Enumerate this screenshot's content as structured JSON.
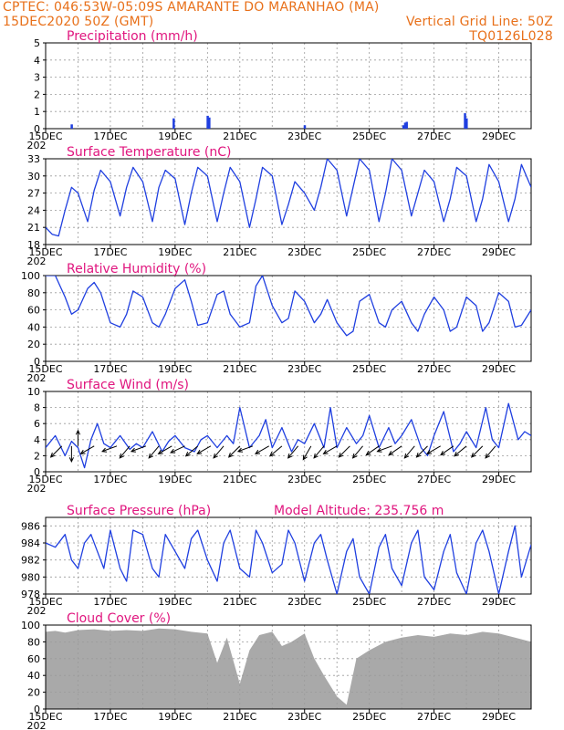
{
  "header": {
    "line1_left": "CPTEC:   046:53W-05:09S   AMARANTE DO MARANHAO (MA)",
    "line2_left": "15DEC2020 50Z (GMT)",
    "line2_right": "Vertical Grid Line: 50Z",
    "line3_right": "TQ0126L028"
  },
  "colors": {
    "header": "#e8701a",
    "title": "#e0157e",
    "series": "#1f3fe0",
    "cloud": "#a9a9a9",
    "grid": "#9a9a9a"
  },
  "x_tick_labels": [
    "15DEC",
    "17DEC",
    "19DEC",
    "21DEC",
    "23DEC",
    "25DEC",
    "27DEC",
    "29DEC"
  ],
  "x_start_label": "202",
  "chart_data": [
    {
      "type": "bar",
      "title": "Precipitation (mm/h)",
      "ylim": [
        0,
        5
      ],
      "yticks": [
        0,
        1,
        2,
        3,
        4,
        5
      ],
      "x_range_days": [
        0,
        15
      ],
      "bars": [
        [
          0.8,
          0.25
        ],
        [
          3.95,
          0.6
        ],
        [
          5.0,
          0.75
        ],
        [
          5.05,
          0.65
        ],
        [
          8.0,
          0.2
        ],
        [
          11.05,
          0.2
        ],
        [
          11.1,
          0.35
        ],
        [
          11.15,
          0.4
        ],
        [
          12.95,
          0.9
        ],
        [
          13.0,
          0.6
        ]
      ]
    },
    {
      "type": "line",
      "title": "Surface Temperature (nC)",
      "ylim": [
        18,
        33
      ],
      "yticks": [
        18,
        21,
        24,
        27,
        30,
        33
      ],
      "x": [
        0,
        0.2,
        0.4,
        0.6,
        0.8,
        1.0,
        1.3,
        1.5,
        1.7,
        2.0,
        2.3,
        2.5,
        2.7,
        3.0,
        3.3,
        3.5,
        3.7,
        4.0,
        4.3,
        4.5,
        4.7,
        5.0,
        5.3,
        5.5,
        5.7,
        6.0,
        6.3,
        6.5,
        6.7,
        7.0,
        7.3,
        7.5,
        7.7,
        8.0,
        8.3,
        8.5,
        8.7,
        9.0,
        9.3,
        9.5,
        9.7,
        10.0,
        10.3,
        10.5,
        10.7,
        11.0,
        11.3,
        11.5,
        11.7,
        12.0,
        12.3,
        12.5,
        12.7,
        13.0,
        13.3,
        13.5,
        13.7,
        14.0,
        14.3,
        14.5,
        14.7,
        15.0
      ],
      "values": [
        21.0,
        19.8,
        19.5,
        24.0,
        28.0,
        27.0,
        22.0,
        27.5,
        31.0,
        29.0,
        23.0,
        28.0,
        31.5,
        29.0,
        22.0,
        28.0,
        31.0,
        29.5,
        21.5,
        27.0,
        31.5,
        30.0,
        22.0,
        27.0,
        31.5,
        29.0,
        21.0,
        26.0,
        31.5,
        30.0,
        21.5,
        25.0,
        29.0,
        27.0,
        24.0,
        28.0,
        33.0,
        31.0,
        23.0,
        28.0,
        33.0,
        31.0,
        22.0,
        27.0,
        33.0,
        31.0,
        23.0,
        27.0,
        31.0,
        29.0,
        22.0,
        26.0,
        31.5,
        30.0,
        22.0,
        26.0,
        32.0,
        29.0,
        22.0,
        26.0,
        32.0,
        28.0
      ]
    },
    {
      "type": "line",
      "title": "Relative Humidity (%)",
      "ylim": [
        0,
        100
      ],
      "yticks": [
        0,
        20,
        40,
        60,
        80,
        100
      ],
      "x": [
        0,
        0.3,
        0.6,
        0.8,
        1.0,
        1.3,
        1.5,
        1.7,
        2.0,
        2.3,
        2.5,
        2.7,
        3.0,
        3.3,
        3.5,
        3.7,
        4.0,
        4.3,
        4.5,
        4.7,
        5.0,
        5.3,
        5.5,
        5.7,
        6.0,
        6.3,
        6.5,
        6.7,
        7.0,
        7.3,
        7.5,
        7.7,
        8.0,
        8.3,
        8.5,
        8.7,
        9.0,
        9.3,
        9.5,
        9.7,
        10.0,
        10.3,
        10.5,
        10.7,
        11.0,
        11.3,
        11.5,
        11.7,
        12.0,
        12.3,
        12.5,
        12.7,
        13.0,
        13.3,
        13.5,
        13.7,
        14.0,
        14.3,
        14.5,
        14.7,
        15.0
      ],
      "values": [
        100,
        100,
        75,
        55,
        60,
        85,
        92,
        80,
        45,
        40,
        55,
        82,
        75,
        45,
        40,
        55,
        85,
        95,
        70,
        42,
        45,
        78,
        82,
        55,
        40,
        45,
        88,
        100,
        65,
        45,
        50,
        82,
        70,
        45,
        55,
        72,
        45,
        30,
        35,
        70,
        78,
        45,
        40,
        60,
        70,
        45,
        35,
        55,
        75,
        60,
        35,
        40,
        75,
        65,
        35,
        45,
        80,
        70,
        40,
        42,
        60
      ]
    },
    {
      "type": "line",
      "title": "Surface Wind (m/s)",
      "ylim": [
        0,
        10
      ],
      "yticks": [
        0,
        2,
        4,
        6,
        8,
        10
      ],
      "x": [
        0,
        0.3,
        0.6,
        0.8,
        1.0,
        1.2,
        1.4,
        1.6,
        1.8,
        2.0,
        2.3,
        2.6,
        2.8,
        3.0,
        3.3,
        3.6,
        3.8,
        4.0,
        4.3,
        4.6,
        4.8,
        5.0,
        5.3,
        5.6,
        5.8,
        6.0,
        6.3,
        6.6,
        6.8,
        7.0,
        7.3,
        7.6,
        7.8,
        8.0,
        8.3,
        8.6,
        8.8,
        9.0,
        9.3,
        9.6,
        9.8,
        10.0,
        10.3,
        10.6,
        10.8,
        11.0,
        11.3,
        11.6,
        11.8,
        12.0,
        12.3,
        12.6,
        12.8,
        13.0,
        13.3,
        13.6,
        13.8,
        14.0,
        14.3,
        14.6,
        14.8,
        15.0
      ],
      "values": [
        3.0,
        4.5,
        2.0,
        3.8,
        3.0,
        0.5,
        4.0,
        6.0,
        3.5,
        3.0,
        4.5,
        2.8,
        3.5,
        3.0,
        5.0,
        2.5,
        3.8,
        4.5,
        3.0,
        2.5,
        4.0,
        4.5,
        3.0,
        4.5,
        3.5,
        8.0,
        3.0,
        4.5,
        6.5,
        3.0,
        5.5,
        2.5,
        4.0,
        3.5,
        6.0,
        3.0,
        8.0,
        3.0,
        5.5,
        3.5,
        4.5,
        7.0,
        3.0,
        5.5,
        3.5,
        4.5,
        6.5,
        3.0,
        2.0,
        4.5,
        7.5,
        2.5,
        3.5,
        5.0,
        3.0,
        8.0,
        4.0,
        3.0,
        8.5,
        4.0,
        5.0,
        4.5
      ]
    },
    {
      "type": "line",
      "title": "Surface Pressure (hPa)",
      "subtitle": "Model Altitude: 235.756 m",
      "ylim": [
        978,
        987
      ],
      "yticks": [
        978,
        980,
        982,
        984,
        986
      ],
      "x": [
        0,
        0.3,
        0.6,
        0.8,
        1.0,
        1.2,
        1.4,
        1.6,
        1.8,
        2.0,
        2.3,
        2.5,
        2.7,
        3.0,
        3.3,
        3.5,
        3.7,
        4.0,
        4.3,
        4.5,
        4.7,
        5.0,
        5.3,
        5.5,
        5.7,
        6.0,
        6.3,
        6.5,
        6.7,
        7.0,
        7.3,
        7.5,
        7.7,
        8.0,
        8.3,
        8.5,
        8.7,
        9.0,
        9.3,
        9.5,
        9.7,
        10.0,
        10.3,
        10.5,
        10.7,
        11.0,
        11.3,
        11.5,
        11.7,
        12.0,
        12.3,
        12.5,
        12.7,
        13.0,
        13.3,
        13.5,
        13.7,
        14.0,
        14.3,
        14.5,
        14.7,
        15.0
      ],
      "values": [
        984,
        983.5,
        985,
        982,
        981,
        984,
        985,
        983,
        981,
        985.5,
        981,
        979.5,
        985.5,
        985,
        981,
        980,
        985,
        983,
        981,
        984.5,
        985.5,
        982,
        979.5,
        984,
        985.5,
        981,
        980,
        985.5,
        984,
        980.5,
        981.5,
        985.5,
        984,
        979.5,
        984,
        985,
        982,
        978,
        983,
        984.5,
        980,
        978,
        983.5,
        985,
        981,
        979,
        984,
        985.5,
        980,
        978.5,
        983,
        985,
        980.5,
        978,
        984,
        985.5,
        983,
        978,
        983,
        986,
        980,
        983.8
      ]
    },
    {
      "type": "bar",
      "title": "Cloud Cover (%)",
      "ylim": [
        0,
        100
      ],
      "yticks": [
        0,
        20,
        40,
        60,
        80,
        100
      ],
      "x": [
        0,
        0.3,
        0.6,
        1.0,
        1.5,
        2.0,
        2.5,
        3.0,
        3.5,
        4.0,
        4.5,
        5.0,
        5.3,
        5.6,
        6.0,
        6.3,
        6.6,
        7.0,
        7.3,
        7.6,
        8.0,
        8.3,
        8.6,
        9.0,
        9.3,
        9.6,
        10.0,
        10.5,
        11.0,
        11.5,
        12.0,
        12.5,
        13.0,
        13.5,
        14.0,
        14.5,
        15.0
      ],
      "values": [
        92,
        93,
        91,
        94,
        95,
        93,
        94,
        93,
        96,
        95,
        92,
        90,
        55,
        85,
        30,
        70,
        88,
        92,
        75,
        80,
        90,
        60,
        40,
        15,
        5,
        60,
        70,
        80,
        85,
        88,
        86,
        90,
        88,
        92,
        90,
        85,
        80
      ]
    }
  ],
  "wind_arrows": [
    [
      0.5,
      225
    ],
    [
      0.8,
      270
    ],
    [
      1.0,
      90
    ],
    [
      1.5,
      210
    ],
    [
      2.2,
      200
    ],
    [
      2.6,
      230
    ],
    [
      3.1,
      200
    ],
    [
      3.5,
      230
    ],
    [
      3.9,
      210
    ],
    [
      4.3,
      205
    ],
    [
      4.7,
      220
    ],
    [
      5.1,
      210
    ],
    [
      5.5,
      230
    ],
    [
      6.0,
      225
    ],
    [
      6.4,
      200
    ],
    [
      6.9,
      210
    ],
    [
      7.3,
      220
    ],
    [
      7.8,
      230
    ],
    [
      8.2,
      240
    ],
    [
      8.6,
      230
    ],
    [
      9.0,
      210
    ],
    [
      9.4,
      225
    ],
    [
      9.8,
      230
    ],
    [
      10.3,
      215
    ],
    [
      10.7,
      200
    ],
    [
      11.0,
      215
    ],
    [
      11.4,
      230
    ],
    [
      11.8,
      225
    ],
    [
      12.2,
      210
    ],
    [
      12.6,
      215
    ],
    [
      13.0,
      220
    ],
    [
      13.5,
      225
    ],
    [
      13.9,
      230
    ]
  ]
}
